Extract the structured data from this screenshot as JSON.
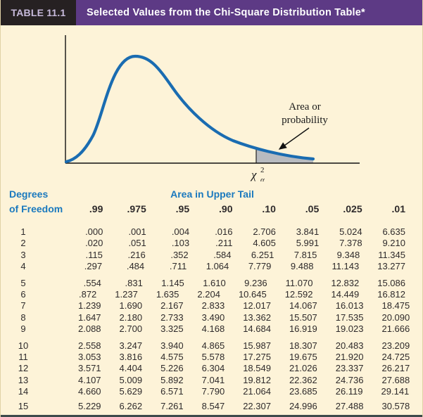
{
  "header": {
    "tag": "TABLE 11.1",
    "title": "Selected Values from the Chi-Square Distribution Table*"
  },
  "figure": {
    "annotation_line1": "Area or",
    "annotation_line2": "probability",
    "critical_value_symbol": "χ",
    "critical_value_sup": "2",
    "critical_value_sub": "α",
    "curve_color": "#1a6cb1",
    "shade_color": "#b8bbc0"
  },
  "table": {
    "row_header_line1": "Degrees",
    "row_header_line2": "of Freedom",
    "col_group_header": "Area in Upper Tail",
    "columns": [
      ".99",
      ".975",
      ".95",
      ".90",
      ".10",
      ".05",
      ".025",
      ".01"
    ],
    "groups": [
      [
        {
          "df": "1",
          "values": [
            ".000",
            ".001",
            ".004",
            ".016",
            "2.706",
            "3.841",
            "5.024",
            "6.635"
          ]
        },
        {
          "df": "2",
          "values": [
            ".020",
            ".051",
            ".103",
            ".211",
            "4.605",
            "5.991",
            "7.378",
            "9.210"
          ]
        },
        {
          "df": "3",
          "values": [
            ".115",
            ".216",
            ".352",
            ".584",
            "6.251",
            "7.815",
            "9.348",
            "11.345"
          ]
        },
        {
          "df": "4",
          "values": [
            ".297",
            ".484",
            ".711",
            "1.064",
            "7.779",
            "9.488",
            "11.143",
            "13.277"
          ]
        }
      ],
      [
        {
          "df": "5",
          "values": [
            ".554",
            ".831",
            "1.145",
            "1.610",
            "9.236",
            "11.070",
            "12.832",
            "15.086"
          ]
        },
        {
          "df": "6",
          "values": [
            ".872",
            "1.237",
            "1.635",
            "2.204",
            "10.645",
            "12.592",
            "14.449",
            "16.812"
          ]
        },
        {
          "df": "7",
          "values": [
            "1.239",
            "1.690",
            "2.167",
            "2.833",
            "12.017",
            "14.067",
            "16.013",
            "18.475"
          ]
        },
        {
          "df": "8",
          "values": [
            "1.647",
            "2.180",
            "2.733",
            "3.490",
            "13.362",
            "15.507",
            "17.535",
            "20.090"
          ]
        },
        {
          "df": "9",
          "values": [
            "2.088",
            "2.700",
            "3.325",
            "4.168",
            "14.684",
            "16.919",
            "19.023",
            "21.666"
          ]
        }
      ],
      [
        {
          "df": "10",
          "values": [
            "2.558",
            "3.247",
            "3.940",
            "4.865",
            "15.987",
            "18.307",
            "20.483",
            "23.209"
          ]
        },
        {
          "df": "11",
          "values": [
            "3.053",
            "3.816",
            "4.575",
            "5.578",
            "17.275",
            "19.675",
            "21.920",
            "24.725"
          ]
        },
        {
          "df": "12",
          "values": [
            "3.571",
            "4.404",
            "5.226",
            "6.304",
            "18.549",
            "21.026",
            "23.337",
            "26.217"
          ]
        },
        {
          "df": "13",
          "values": [
            "4.107",
            "5.009",
            "5.892",
            "7.041",
            "19.812",
            "22.362",
            "24.736",
            "27.688"
          ]
        },
        {
          "df": "14",
          "values": [
            "4.660",
            "5.629",
            "6.571",
            "7.790",
            "21.064",
            "23.685",
            "26.119",
            "29.141"
          ]
        }
      ],
      [
        {
          "df": "15",
          "values": [
            "5.229",
            "6.262",
            "7.261",
            "8.547",
            "22.307",
            "24.996",
            "27.488",
            "30.578"
          ]
        }
      ]
    ]
  },
  "colors": {
    "accent_purple": "#5d3a85",
    "header_box": "#262122",
    "header_box_text": "#c7badb",
    "blue_text": "#1a79be",
    "background": "#fdf3d8",
    "bottom_rule": "#3d4a4b"
  }
}
